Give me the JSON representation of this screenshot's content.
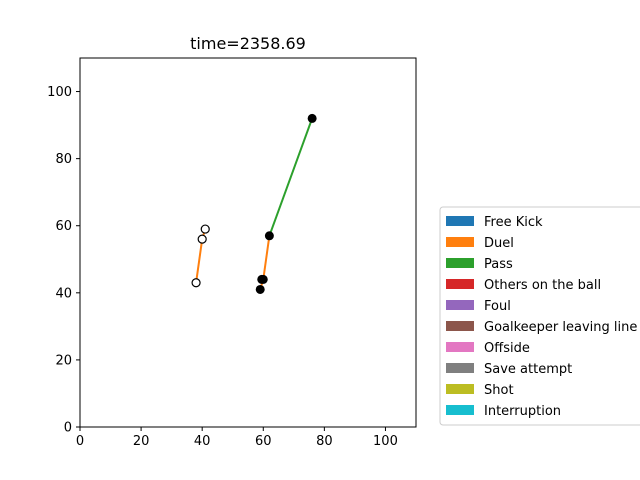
{
  "chart_data": {
    "type": "scatter",
    "title": "time=2358.69",
    "xlabel": "",
    "ylabel": "",
    "xlim": [
      0,
      110
    ],
    "ylim": [
      0,
      110
    ],
    "xticks": [
      "0",
      "20",
      "40",
      "60",
      "80",
      "100"
    ],
    "yticks": [
      "0",
      "20",
      "40",
      "60",
      "80",
      "100"
    ],
    "grid": false,
    "legend_position": "right, vertically centered outside plot",
    "legend": [
      {
        "label": "Free Kick",
        "color": "#1f77b4"
      },
      {
        "label": "Duel",
        "color": "#ff7f0e"
      },
      {
        "label": "Pass",
        "color": "#2ca02c"
      },
      {
        "label": "Others on the ball",
        "color": "#d62728"
      },
      {
        "label": "Foul",
        "color": "#9467bd"
      },
      {
        "label": "Goalkeeper leaving line",
        "color": "#8c564b"
      },
      {
        "label": "Offside",
        "color": "#e377c2"
      },
      {
        "label": "Save attempt",
        "color": "#7f7f7f"
      },
      {
        "label": "Shot",
        "color": "#bcbd22"
      },
      {
        "label": "Interruption",
        "color": "#17becf"
      }
    ],
    "segments": [
      {
        "event": "Pass",
        "color": "#2ca02c",
        "from": [
          62,
          57
        ],
        "to": [
          76,
          92
        ]
      },
      {
        "event": "Duel",
        "color": "#ff7f0e",
        "from": [
          59,
          41
        ],
        "to": [
          60,
          44
        ]
      },
      {
        "event": "Duel",
        "color": "#ff7f0e",
        "from": [
          60,
          44
        ],
        "to": [
          62,
          57
        ]
      },
      {
        "event": "Duel",
        "color": "#ff7f0e",
        "from": [
          38,
          43
        ],
        "to": [
          40,
          56
        ]
      },
      {
        "event": "Duel",
        "color": "#ff7f0e",
        "from": [
          40,
          56
        ],
        "to": [
          41,
          59
        ]
      }
    ],
    "points_filled": [
      {
        "x": 76,
        "y": 92
      },
      {
        "x": 62,
        "y": 57
      },
      {
        "x": 60,
        "y": 44
      },
      {
        "x": 59.5,
        "y": 44
      },
      {
        "x": 59,
        "y": 41
      }
    ],
    "points_hollow": [
      {
        "x": 41,
        "y": 59
      },
      {
        "x": 40,
        "y": 56
      },
      {
        "x": 38,
        "y": 43
      }
    ]
  }
}
